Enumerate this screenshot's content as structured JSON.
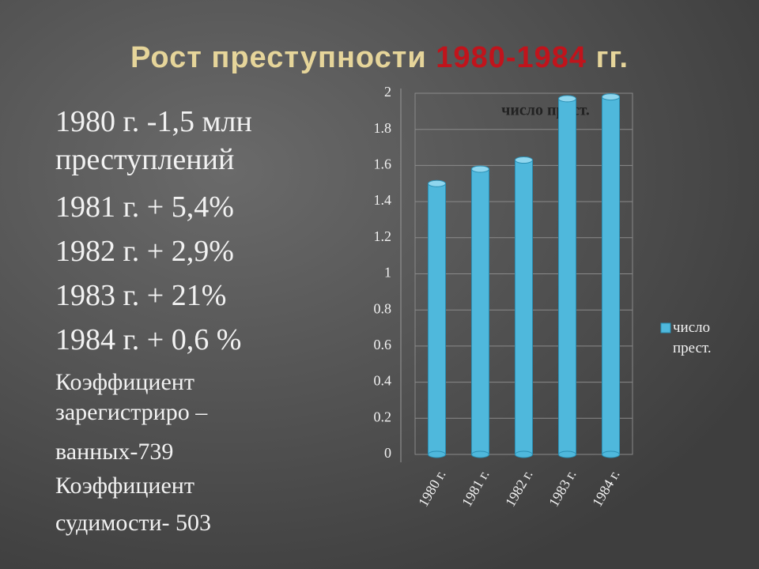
{
  "title": {
    "part1": "Рост преступности ",
    "part2": "1980-1984",
    "part3": " гг."
  },
  "text_lines": [
    "1980 г. -1,5 млн",
    "преступлений",
    "1981 г.  + 5,4%",
    "1982 г.  + 2,9%",
    "1983 г.  + 21%",
    "1984 г.  + 0,6 %"
  ],
  "small_lines": [
    "Коэффициент",
    "зарегистриро –",
    "ванных-739",
    "Коэффициент",
    "судимости- 503"
  ],
  "chart_data": {
    "type": "bar",
    "title": "число прест.",
    "categories": [
      "1980 г.",
      "1981 г.",
      "1982 г.",
      "1983 г.",
      "1984 г."
    ],
    "series": [
      {
        "name": "число прест.",
        "color": "#4fb8dc",
        "values": [
          1.5,
          1.58,
          1.63,
          1.97,
          1.98
        ]
      }
    ],
    "ylim": [
      0,
      2
    ],
    "yticks": [
      0,
      0.2,
      0.4,
      0.6,
      0.8,
      1,
      1.2,
      1.4,
      1.6,
      1.8,
      2
    ],
    "grid": true,
    "legend": "right"
  }
}
